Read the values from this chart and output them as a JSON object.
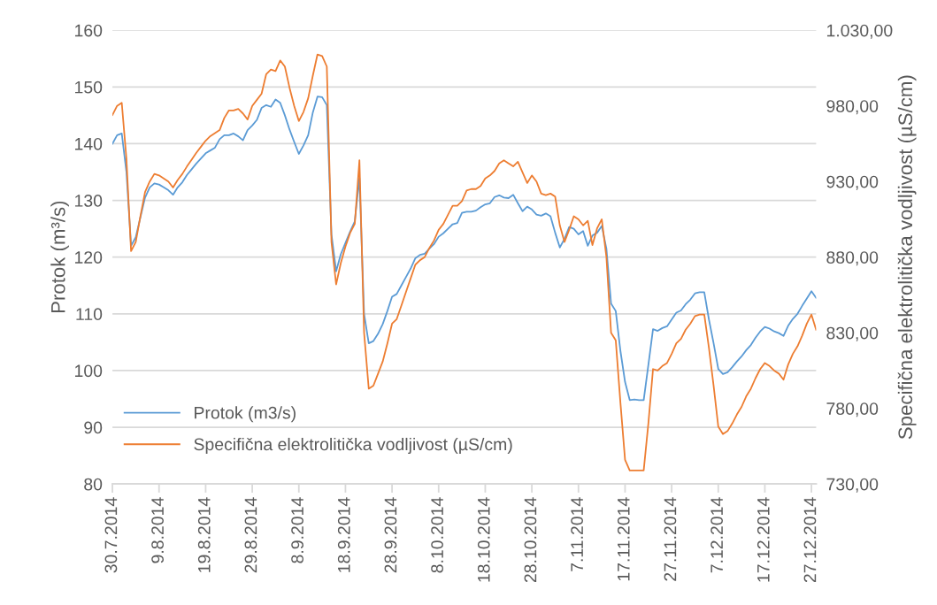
{
  "chart_data": {
    "type": "line",
    "xlabel": null,
    "ylabel": "Protok (m³/s)",
    "y2label": "Specifična elektrolitička vodljivost (µS/cm)",
    "x": [
      "2014-07-30",
      "2014-07-31",
      "2014-08-01",
      "2014-08-02",
      "2014-08-03",
      "2014-08-04",
      "2014-08-05",
      "2014-08-06",
      "2014-08-07",
      "2014-08-08",
      "2014-08-09",
      "2014-08-10",
      "2014-08-11",
      "2014-08-12",
      "2014-08-13",
      "2014-08-14",
      "2014-08-15",
      "2014-08-16",
      "2014-08-17",
      "2014-08-18",
      "2014-08-19",
      "2014-08-20",
      "2014-08-21",
      "2014-08-22",
      "2014-08-23",
      "2014-08-24",
      "2014-08-25",
      "2014-08-26",
      "2014-08-27",
      "2014-08-28",
      "2014-08-29",
      "2014-08-30",
      "2014-08-31",
      "2014-09-01",
      "2014-09-02",
      "2014-09-03",
      "2014-09-04",
      "2014-09-05",
      "2014-09-06",
      "2014-09-07",
      "2014-09-08",
      "2014-09-09",
      "2014-09-10",
      "2014-09-11",
      "2014-09-12",
      "2014-09-13",
      "2014-09-14",
      "2014-09-15",
      "2014-09-16",
      "2014-09-17",
      "2014-09-18",
      "2014-09-19",
      "2014-09-20",
      "2014-09-21",
      "2014-09-22",
      "2014-09-23",
      "2014-09-24",
      "2014-09-25",
      "2014-09-26",
      "2014-09-27",
      "2014-09-28",
      "2014-09-29",
      "2014-09-30",
      "2014-10-01",
      "2014-10-02",
      "2014-10-03",
      "2014-10-04",
      "2014-10-05",
      "2014-10-06",
      "2014-10-07",
      "2014-10-08",
      "2014-10-09",
      "2014-10-10",
      "2014-10-11",
      "2014-10-12",
      "2014-10-13",
      "2014-10-14",
      "2014-10-15",
      "2014-10-16",
      "2014-10-17",
      "2014-10-18",
      "2014-10-19",
      "2014-10-20",
      "2014-10-21",
      "2014-10-22",
      "2014-10-23",
      "2014-10-24",
      "2014-10-25",
      "2014-10-26",
      "2014-10-27",
      "2014-10-28",
      "2014-10-29",
      "2014-10-30",
      "2014-10-31",
      "2014-11-01",
      "2014-11-02",
      "2014-11-03",
      "2014-11-04",
      "2014-11-05",
      "2014-11-06",
      "2014-11-07",
      "2014-11-08",
      "2014-11-09",
      "2014-11-10",
      "2014-11-11",
      "2014-11-12",
      "2014-11-13",
      "2014-11-14",
      "2014-11-15",
      "2014-11-16",
      "2014-11-17",
      "2014-11-18",
      "2014-11-19",
      "2014-11-20",
      "2014-11-21",
      "2014-11-22",
      "2014-11-23",
      "2014-11-24",
      "2014-11-25",
      "2014-11-26",
      "2014-11-27",
      "2014-11-28",
      "2014-11-29",
      "2014-11-30",
      "2014-12-01",
      "2014-12-02",
      "2014-12-03",
      "2014-12-04",
      "2014-12-05",
      "2014-12-06",
      "2014-12-07",
      "2014-12-08",
      "2014-12-09",
      "2014-12-10",
      "2014-12-11",
      "2014-12-12",
      "2014-12-13",
      "2014-12-14",
      "2014-12-15",
      "2014-12-16",
      "2014-12-17",
      "2014-12-18",
      "2014-12-19",
      "2014-12-20",
      "2014-12-21",
      "2014-12-22",
      "2014-12-23",
      "2014-12-24",
      "2014-12-25",
      "2014-12-26",
      "2014-12-27",
      "2014-12-28"
    ],
    "series": [
      {
        "name": "Protok (m3/s)",
        "color": "#5b9bd5",
        "values": [
          140,
          141.5,
          141.8,
          135,
          122,
          123.5,
          127,
          130.5,
          132.3,
          133,
          132.8,
          132.3,
          131.8,
          131,
          132.3,
          133.2,
          134.5,
          135.5,
          136.5,
          137.4,
          138.3,
          138.8,
          139.3,
          140.8,
          141.5,
          141.5,
          141.8,
          141.3,
          140.6,
          142.4,
          143.2,
          144.2,
          146.3,
          146.8,
          146.5,
          147.8,
          147.2,
          145,
          142.5,
          140.3,
          138.2,
          139.7,
          141.5,
          145.5,
          148.3,
          148.2,
          146.8,
          124,
          117.5,
          120.5,
          122.5,
          124.5,
          126.3,
          134,
          110,
          104.8,
          105.2,
          106.5,
          108.2,
          110.5,
          113,
          113.5,
          115,
          116.5,
          118,
          119.8,
          120.4,
          120.6,
          121.5,
          122.3,
          123.6,
          124.2,
          125,
          125.8,
          126,
          127.8,
          128,
          128,
          128.2,
          128.8,
          129.3,
          129.5,
          130.6,
          130.9,
          130.5,
          130.4,
          131,
          129.5,
          128.1,
          128.9,
          128.4,
          127.5,
          127.3,
          127.7,
          127.2,
          124.3,
          121.7,
          123.2,
          125.3,
          125,
          124,
          124.6,
          122,
          123.8,
          124.3,
          125.5,
          121.5,
          111.8,
          110.5,
          103.5,
          98,
          94.8,
          94.9,
          94.8,
          94.8,
          101,
          107.3,
          107,
          107.5,
          107.8,
          109,
          110.2,
          110.6,
          111.7,
          112.5,
          113.6,
          113.8,
          113.8,
          109,
          104.8,
          100.3,
          99.4,
          99.7,
          100.6,
          101.6,
          102.5,
          103.6,
          104.5,
          105.8,
          106.9,
          107.7,
          107.4,
          106.9,
          106.6,
          106.1,
          107.9,
          109.1,
          110,
          111.4,
          112.7,
          114,
          112.8
        ]
      },
      {
        "name": "Specifična elektrolitička vodljivost (µS/cm)",
        "color": "#ed7d31",
        "axis": "y2",
        "values": [
          974,
          980,
          982,
          945,
          884,
          890,
          907,
          923,
          930,
          935,
          934,
          932,
          930,
          926,
          931,
          935,
          940,
          944.5,
          949,
          953,
          957,
          960,
          962,
          964,
          972,
          977,
          977,
          978,
          975,
          971,
          980,
          984,
          988,
          1001,
          1004,
          1003,
          1010,
          1006,
          992,
          980,
          970,
          976,
          985,
          1000,
          1014,
          1013,
          1006,
          890,
          862,
          876,
          887,
          896,
          902,
          944,
          830,
          793,
          795,
          803,
          811,
          823,
          836,
          839,
          848,
          857,
          866,
          875,
          878,
          880,
          886,
          891,
          898,
          902,
          908,
          914,
          914,
          917,
          924,
          925,
          925,
          927,
          932,
          934,
          937,
          942,
          944,
          942,
          940,
          943,
          936,
          929,
          934,
          930,
          922,
          921,
          922,
          920,
          901,
          890,
          898,
          907,
          905,
          901,
          904,
          888,
          899,
          905,
          880,
          830,
          825,
          784,
          746,
          739,
          739,
          739,
          739,
          770,
          806,
          805,
          808,
          810,
          816,
          823,
          826,
          832,
          836,
          841,
          842,
          842,
          820,
          795,
          768,
          763,
          765,
          770,
          776,
          781,
          788,
          793,
          800,
          806,
          810,
          808,
          805,
          803,
          799,
          809,
          816,
          821,
          828,
          836,
          842,
          832
        ]
      }
    ],
    "xlim": [
      "2014-07-30",
      "2014-12-28"
    ],
    "xticks": [
      {
        "value": "2014-07-30",
        "label": "30.7.2014"
      },
      {
        "value": "2014-08-09",
        "label": "9.8.2014"
      },
      {
        "value": "2014-08-19",
        "label": "19.8.2014"
      },
      {
        "value": "2014-08-29",
        "label": "29.8.2014"
      },
      {
        "value": "2014-09-08",
        "label": "8.9.2014"
      },
      {
        "value": "2014-09-18",
        "label": "18.9.2014"
      },
      {
        "value": "2014-09-28",
        "label": "28.9.2014"
      },
      {
        "value": "2014-10-08",
        "label": "8.10.2014"
      },
      {
        "value": "2014-10-18",
        "label": "18.10.2014"
      },
      {
        "value": "2014-10-28",
        "label": "28.10.2014"
      },
      {
        "value": "2014-11-07",
        "label": "7.11.2014"
      },
      {
        "value": "2014-11-17",
        "label": "17.11.2014"
      },
      {
        "value": "2014-11-27",
        "label": "27.11.2014"
      },
      {
        "value": "2014-12-07",
        "label": "7.12.2014"
      },
      {
        "value": "2014-12-17",
        "label": "17.12.2014"
      },
      {
        "value": "2014-12-27",
        "label": "27.12.2014"
      }
    ],
    "ylim": [
      80,
      160
    ],
    "yticks": [
      80,
      90,
      100,
      110,
      120,
      130,
      140,
      150,
      160
    ],
    "y2lim": [
      730,
      1030
    ],
    "y2ticks": [
      {
        "value": 730,
        "label": "730,00"
      },
      {
        "value": 780,
        "label": "780,00"
      },
      {
        "value": 830,
        "label": "830,00"
      },
      {
        "value": 880,
        "label": "880,00"
      },
      {
        "value": 930,
        "label": "930,00"
      },
      {
        "value": 980,
        "label": "980,00"
      },
      {
        "value": 1030,
        "label": "1.030,00"
      }
    ],
    "grid": "y",
    "legend": "bottom left",
    "marker": "none",
    "line_style": "solid"
  }
}
